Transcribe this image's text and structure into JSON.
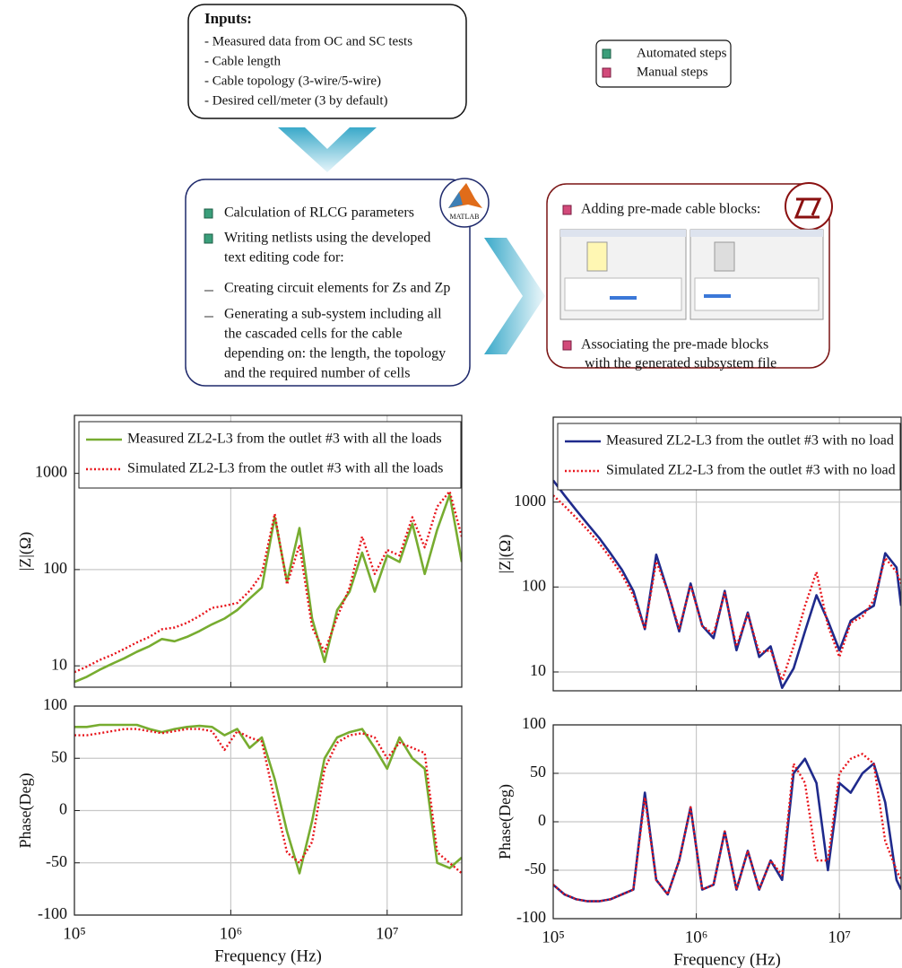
{
  "diagram": {
    "inputs": {
      "title": "Inputs:",
      "items": [
        "- Measured data from OC and SC tests",
        "- Cable length",
        "- Cable topology (3-wire/5-wire)",
        "- Desired cell/meter (3 by default)"
      ]
    },
    "legend": {
      "automated": "Automated steps",
      "manual": "Manual steps"
    },
    "matlab_box": {
      "logo": "MATLAB",
      "items": [
        [
          "Calculation of RLCG parameters"
        ],
        [
          "Writing netlists using the developed",
          "text editing code for:"
        ]
      ],
      "sub_items": [
        [
          "Creating circuit elements for Zs and Zp"
        ],
        [
          "Generating a sub-system including all",
          "the cascaded cells for the cable",
          "depending on: the length, the topology",
          "and the required number of cells"
        ]
      ]
    },
    "ltspice_box": {
      "items": [
        [
          "Adding pre-made cable blocks:"
        ],
        [
          "Associating the pre-made blocks",
          "with the generated subsystem file"
        ]
      ]
    }
  },
  "chart_data": [
    {
      "type": "line",
      "xlog": true,
      "ylog": true,
      "grid": true,
      "legend": "upper left",
      "ylabel": "|Z|(Ω)",
      "x": [
        100000,
        120000,
        145000,
        174000,
        209000,
        251000,
        302000,
        363000,
        437000,
        525000,
        631000,
        759000,
        912000,
        1100000,
        1320000,
        1580000,
        1910000,
        2290000,
        2750000,
        3310000,
        3980000,
        4790000,
        5750000,
        6920000,
        8320000,
        10000000,
        12000000,
        14500000,
        17400000,
        20900000,
        25100000,
        30000000
      ],
      "xlim": [
        100000,
        30000000
      ],
      "xticks": [
        100000,
        1000000,
        10000000
      ],
      "ylim": [
        6,
        4000
      ],
      "yticks": [
        10,
        100,
        1000
      ],
      "series": [
        {
          "name": "Measured ZL2-L3 from the outlet #3 with all the loads",
          "color": "#77ac30",
          "line_style": "solid",
          "values": [
            6.8,
            7.7,
            9.1,
            10.5,
            12,
            14,
            16,
            19,
            18,
            20,
            23,
            27,
            31,
            38,
            50,
            65,
            350,
            75,
            270,
            31,
            11,
            38,
            59,
            150,
            59,
            140,
            120,
            300,
            90,
            260,
            600,
            120
          ]
        },
        {
          "name": "Simulated ZL2-L3 from the outlet #3 with all the loads",
          "color": "#e8141b",
          "line_style": "dotted",
          "values": [
            8.6,
            9.8,
            11.5,
            13,
            15,
            17.5,
            20,
            24,
            25,
            28,
            33,
            40,
            42,
            45,
            60,
            90,
            380,
            70,
            180,
            25,
            14,
            32,
            65,
            220,
            90,
            160,
            140,
            350,
            170,
            450,
            650,
            220
          ]
        }
      ]
    },
    {
      "type": "line",
      "xlog": true,
      "ylog": false,
      "grid": true,
      "ylabel": "Phase(Deg)",
      "xlabel": "Frequency (Hz)",
      "x": [
        100000,
        120000,
        145000,
        174000,
        209000,
        251000,
        302000,
        363000,
        437000,
        525000,
        631000,
        759000,
        912000,
        1100000,
        1320000,
        1580000,
        1910000,
        2290000,
        2750000,
        3310000,
        3980000,
        4790000,
        5750000,
        6920000,
        8320000,
        10000000,
        12000000,
        14500000,
        17400000,
        20900000,
        25100000,
        30000000
      ],
      "xlim": [
        100000,
        30000000
      ],
      "xticks": [
        {
          "value": 100000,
          "label": "10⁵"
        },
        {
          "value": 1000000,
          "label": "10⁶"
        },
        {
          "value": 10000000,
          "label": "10⁷"
        }
      ],
      "ylim": [
        -100,
        100
      ],
      "yticks": [
        -100,
        -50,
        0,
        50,
        100
      ],
      "series": [
        {
          "color": "#77ac30",
          "line_style": "solid",
          "values": [
            80,
            80,
            82,
            82,
            82,
            82,
            78,
            75,
            78,
            80,
            81,
            80,
            72,
            78,
            60,
            70,
            30,
            -20,
            -60,
            -10,
            50,
            70,
            75,
            78,
            60,
            40,
            70,
            50,
            40,
            -50,
            -55,
            -45
          ]
        },
        {
          "color": "#e8141b",
          "line_style": "dotted",
          "values": [
            72,
            72,
            74,
            76,
            78,
            78,
            76,
            74,
            76,
            78,
            78,
            76,
            58,
            76,
            70,
            66,
            10,
            -40,
            -50,
            -30,
            40,
            65,
            72,
            74,
            70,
            50,
            65,
            60,
            55,
            -40,
            -50,
            -60
          ]
        }
      ]
    },
    {
      "type": "line",
      "xlog": true,
      "ylog": true,
      "grid": true,
      "legend": "upper left",
      "ylabel": "|Z|(Ω)",
      "x": [
        100000,
        120000,
        145000,
        174000,
        209000,
        251000,
        302000,
        363000,
        437000,
        525000,
        631000,
        759000,
        912000,
        1100000,
        1320000,
        1580000,
        1910000,
        2290000,
        2750000,
        3310000,
        3980000,
        4790000,
        5750000,
        6920000,
        8320000,
        10000000,
        12000000,
        14500000,
        17400000,
        20900000,
        25100000,
        27000000
      ],
      "xlim": [
        100000,
        27000000
      ],
      "xticks": [
        100000,
        1000000,
        10000000
      ],
      "ylim": [
        6,
        10000
      ],
      "yticks": [
        10,
        100,
        1000
      ],
      "series": [
        {
          "name": "Measured ZL2-L3 from the outlet #3 with no load",
          "color": "#1f2a8c",
          "line_style": "solid",
          "values": [
            1800,
            1200,
            800,
            550,
            380,
            250,
            160,
            90,
            32,
            240,
            90,
            30,
            110,
            35,
            25,
            90,
            18,
            50,
            15,
            20,
            6.5,
            11,
            30,
            80,
            40,
            18,
            40,
            50,
            60,
            250,
            170,
            60
          ]
        },
        {
          "name": "Simulated ZL2-L3 from the outlet #3 with no load",
          "color": "#e8141b",
          "line_style": "dotted",
          "values": [
            1200,
            900,
            650,
            470,
            330,
            220,
            140,
            80,
            32,
            200,
            90,
            32,
            105,
            35,
            28,
            85,
            20,
            48,
            17,
            18,
            8,
            20,
            60,
            150,
            35,
            15,
            38,
            45,
            70,
            220,
            150,
            110
          ]
        }
      ]
    },
    {
      "type": "line",
      "xlog": true,
      "ylog": false,
      "grid": true,
      "ylabel": "Phase(Deg)",
      "xlabel": "Frequency (Hz)",
      "x": [
        100000,
        120000,
        145000,
        174000,
        209000,
        251000,
        302000,
        363000,
        437000,
        525000,
        631000,
        759000,
        912000,
        1100000,
        1320000,
        1580000,
        1910000,
        2290000,
        2750000,
        3310000,
        3980000,
        4790000,
        5750000,
        6920000,
        8320000,
        10000000,
        12000000,
        14500000,
        17400000,
        20900000,
        25100000,
        27000000
      ],
      "xlim": [
        100000,
        27000000
      ],
      "xticks": [
        {
          "value": 100000,
          "label": "10⁵"
        },
        {
          "value": 1000000,
          "label": "10⁶"
        },
        {
          "value": 10000000,
          "label": "10⁷"
        }
      ],
      "ylim": [
        -100,
        100
      ],
      "yticks": [
        -100,
        -50,
        0,
        50,
        100
      ],
      "series": [
        {
          "color": "#1f2a8c",
          "line_style": "solid",
          "values": [
            -65,
            -75,
            -80,
            -82,
            -82,
            -80,
            -75,
            -70,
            30,
            -60,
            -75,
            -40,
            15,
            -70,
            -65,
            -10,
            -70,
            -30,
            -70,
            -40,
            -60,
            50,
            65,
            40,
            -50,
            40,
            30,
            50,
            60,
            20,
            -60,
            -70
          ]
        },
        {
          "color": "#e8141b",
          "line_style": "dotted",
          "values": [
            -65,
            -75,
            -80,
            -82,
            -82,
            -80,
            -75,
            -70,
            25,
            -60,
            -75,
            -40,
            15,
            -70,
            -65,
            -10,
            -70,
            -30,
            -70,
            -40,
            -55,
            60,
            40,
            -40,
            -40,
            50,
            65,
            70,
            60,
            -20,
            -50,
            -60
          ]
        }
      ]
    }
  ]
}
